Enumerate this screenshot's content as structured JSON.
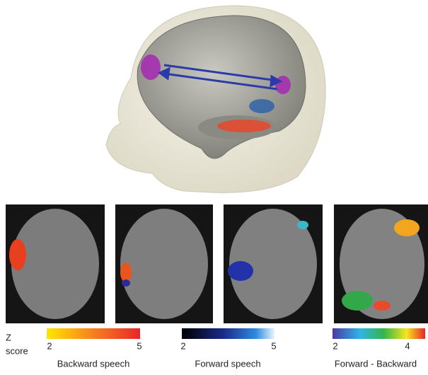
{
  "legend": {
    "z_label": "Z",
    "score_label": "score",
    "colorbars": [
      {
        "min_label": "2",
        "max_label": "5",
        "caption": "Backward speech"
      },
      {
        "min_label": "2",
        "max_label": "5",
        "caption": "Forward speech"
      },
      {
        "min_label": "2",
        "max_label": "4",
        "caption": "Forward - Backward"
      }
    ]
  }
}
